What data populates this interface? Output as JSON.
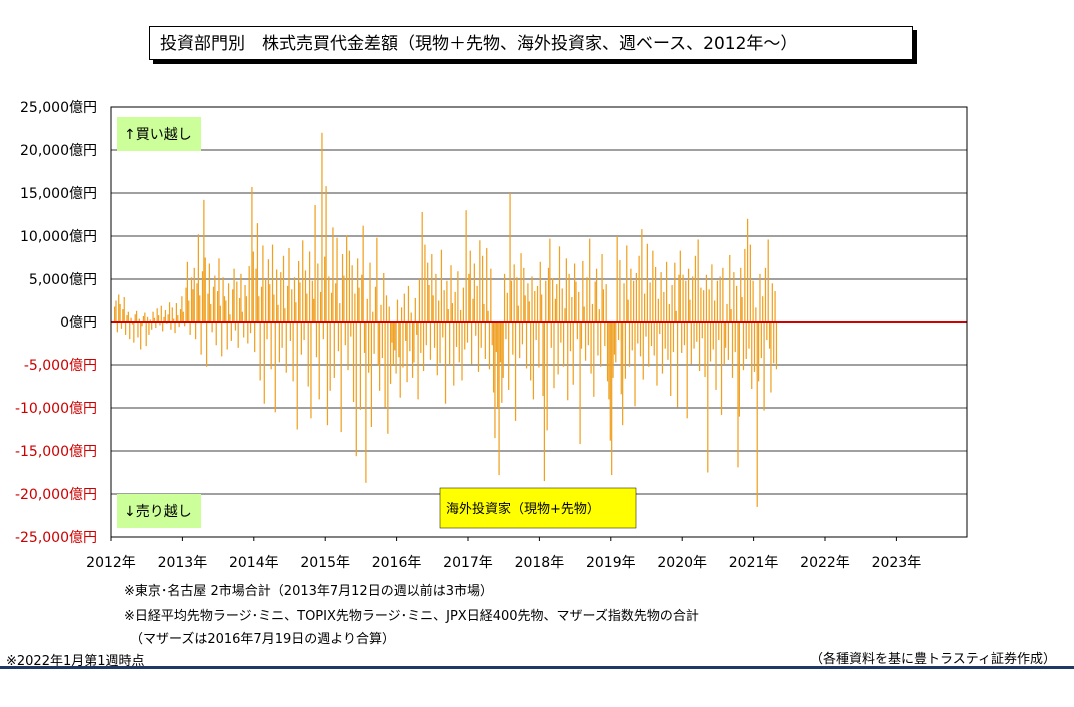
{
  "title": "投資部門別　株式売買代金差額（現物＋先物、海外投資家、週ベース、2012年～）",
  "chart_data": {
    "type": "bar",
    "y_tick_labels": [
      "25,000億円",
      "20,000億円",
      "15,000億円",
      "10,000億円",
      "5,000億円",
      "0億円",
      "-5,000億円",
      "-10,000億円",
      "-15,000億円",
      "-20,000億円",
      "-25,000億円"
    ],
    "x_tick_labels": [
      "2012年",
      "2013年",
      "2014年",
      "2015年",
      "2016年",
      "2017年",
      "2018年",
      "2019年",
      "2020年",
      "2021年",
      "2022年",
      "2023年"
    ],
    "ylim": [
      -25000,
      25000
    ],
    "grid": true,
    "series": [
      {
        "name": "海外投資家（現物+先物）",
        "color": "#f0a020",
        "weeks_per_year": 52,
        "values": [
          1800,
          2500,
          -1200,
          3200,
          2100,
          -800,
          1500,
          2900,
          -1500,
          800,
          1200,
          -2000,
          500,
          -300,
          -2400,
          900,
          1300,
          -1800,
          400,
          -3200,
          -500,
          700,
          1100,
          -2800,
          600,
          -1500,
          300,
          -900,
          1200,
          500,
          -700,
          1600,
          800,
          -400,
          1900,
          -1100,
          600,
          1400,
          -200,
          900,
          2300,
          -900,
          1700,
          400,
          -1300,
          2200,
          800,
          -600,
          1500,
          3000,
          1200,
          -500,
          4000,
          7000,
          2500,
          -1500,
          5200,
          3800,
          6300,
          -2000,
          4500,
          10200,
          3100,
          -3800,
          5900,
          14200,
          7500,
          -5200,
          3300,
          6800,
          2100,
          -1200,
          4100,
          5400,
          -2700,
          3600,
          7400,
          1900,
          -4000,
          5200,
          3000,
          2500,
          -3200,
          4500,
          900,
          -2200,
          3800,
          6200,
          -1000,
          4700,
          -3000,
          2800,
          5600,
          1200,
          -1800,
          4300,
          3000,
          -2500,
          6500,
          -1300,
          15700,
          8200,
          -3500,
          6200,
          11500,
          3000,
          -6800,
          4100,
          8900,
          -9500,
          5000,
          -2000,
          7300,
          4400,
          -5500,
          9000,
          3200,
          -10500,
          6100,
          2000,
          -4700,
          5800,
          -3000,
          7700,
          1600,
          -5900,
          4200,
          8600,
          -2200,
          3800,
          -6900,
          5200,
          2300,
          -12500,
          7100,
          4600,
          -3800,
          9500,
          -2100,
          6000,
          3300,
          -7500,
          8200,
          -11200,
          4800,
          2700,
          13600,
          -4100,
          6800,
          -9000,
          3500,
          22000,
          -2000,
          7600,
          15800,
          -12000,
          5300,
          -8000,
          3400,
          11000,
          -6500,
          4500,
          9800,
          -3400,
          2200,
          -12800,
          7900,
          5400,
          -2700,
          10100,
          -5600,
          8300,
          -1700,
          6600,
          -9300,
          3300,
          -15600,
          7400,
          4000,
          -10200,
          5500,
          11200,
          -3600,
          -18700,
          2700,
          -5900,
          6900,
          -12200,
          1200,
          -3700,
          4100,
          9800,
          -5100,
          -8000,
          2000,
          -4200,
          5700,
          -9900,
          3100,
          -13000,
          1800,
          -7200,
          -2400,
          -5000,
          -3300,
          -6000,
          2600,
          -4100,
          -8800,
          1700,
          -5300,
          3300,
          -2200,
          -7000,
          4200,
          -3400,
          1100,
          -6500,
          -4700,
          2800,
          -1500,
          -9000,
          5000,
          -3600,
          12800,
          -5700,
          9000,
          -2700,
          6900,
          4300,
          -4400,
          7900,
          3100,
          -3000,
          5600,
          -6200,
          2500,
          -4800,
          8400,
          -1800,
          3700,
          -9500,
          4800,
          1500,
          -5000,
          6600,
          2200,
          -7400,
          3500,
          -2900,
          5900,
          -4700,
          1400,
          -6800,
          4000,
          -3200,
          13000,
          -2400,
          5600,
          8300,
          -4900,
          2700,
          6800,
          -1600,
          4200,
          -5800,
          9500,
          -3000,
          7700,
          2100,
          -4300,
          8600,
          1300,
          -5500,
          6200,
          -2700,
          -8200,
          -13500,
          -3500,
          -10000,
          -17800,
          -4700,
          -9400,
          -6500,
          5600,
          -2000,
          3400,
          -7900,
          15000,
          4800,
          -3800,
          6700,
          -11500,
          5200,
          1900,
          -4200,
          8000,
          -2600,
          6300,
          3100,
          -5400,
          4500,
          2400,
          -6800,
          5300,
          -9000,
          3600,
          -2100,
          4200,
          -5300,
          7000,
          3200,
          -8600,
          -18500,
          4800,
          -12600,
          6300,
          9700,
          -3000,
          5100,
          -7700,
          2700,
          4400,
          -6100,
          8800,
          -2400,
          3900,
          -5200,
          1600,
          7400,
          -9100,
          5600,
          -3400,
          2900,
          -7300,
          6800,
          4700,
          -2000,
          3500,
          -14200,
          -3100,
          7100,
          1800,
          -4500,
          5200,
          -2700,
          9700,
          -6000,
          2100,
          -8700,
          4700,
          6200,
          -3900,
          1500,
          -5200,
          7900,
          3800,
          -2800,
          4400,
          -6900,
          -9000,
          -13800,
          -17800,
          -6500,
          -3800,
          -4700,
          10000,
          -2100,
          7200,
          -8400,
          -12000,
          4500,
          -6600,
          8900,
          2600,
          -5200,
          6200,
          -3300,
          4800,
          -9800,
          5700,
          -2500,
          7700,
          -4000,
          10800,
          -6700,
          3300,
          -1700,
          9100,
          -5200,
          4600,
          -2800,
          8300,
          -3900,
          6400,
          -7400,
          2700,
          -1400,
          5800,
          -6000,
          3500,
          -3100,
          7000,
          -4400,
          2100,
          -8600,
          4300,
          -3500,
          6900,
          1300,
          -9900,
          5500,
          8300,
          -3600,
          5500,
          -2700,
          4800,
          -11200,
          6200,
          2600,
          -4900,
          5300,
          -3100,
          7700,
          -2300,
          9600,
          -5700,
          4000,
          -1900,
          3700,
          -6400,
          5500,
          -17500,
          3800,
          -4600,
          6700,
          -3200,
          2500,
          -7900,
          4800,
          -2100,
          5300,
          -10800,
          6300,
          -5000,
          -3000,
          2100,
          -4400,
          7800,
          1500,
          -6500,
          5800,
          -3500,
          4200,
          -16900,
          -11000,
          6300,
          2900,
          -5600,
          8500,
          -4300,
          12000,
          -3100,
          9000,
          -7800,
          4800,
          -5800,
          1700,
          -21500,
          -6900,
          5600,
          -4200,
          3000,
          -10300,
          6300,
          -2100,
          9600,
          -3100,
          -8200,
          4500,
          -4800,
          3600,
          -5500
        ]
      }
    ]
  },
  "legend": {
    "buy_label": "↑買い越し",
    "sell_label": "↓売り越し",
    "series_box_label": "海外投資家（現物+先物）"
  },
  "notes": [
    "※東京･名古屋 2市場合計（2013年7月12日の週以前は3市場）",
    "※日経平均先物ラージ･ミニ、TOPIX先物ラージ･ミニ、JPX日経400先物、マザーズ指数先物の合計",
    "（マザーズは2016年7月19日の週より合算）"
  ],
  "footnote_left": "※2022年1月第1週時点",
  "source": "（各種資料を基に豊トラスティ証券作成）",
  "colors": {
    "bar": "#f0a020",
    "zero_line": "#d00000",
    "label_box": "#ccff99",
    "series_box": "#ffff00"
  }
}
